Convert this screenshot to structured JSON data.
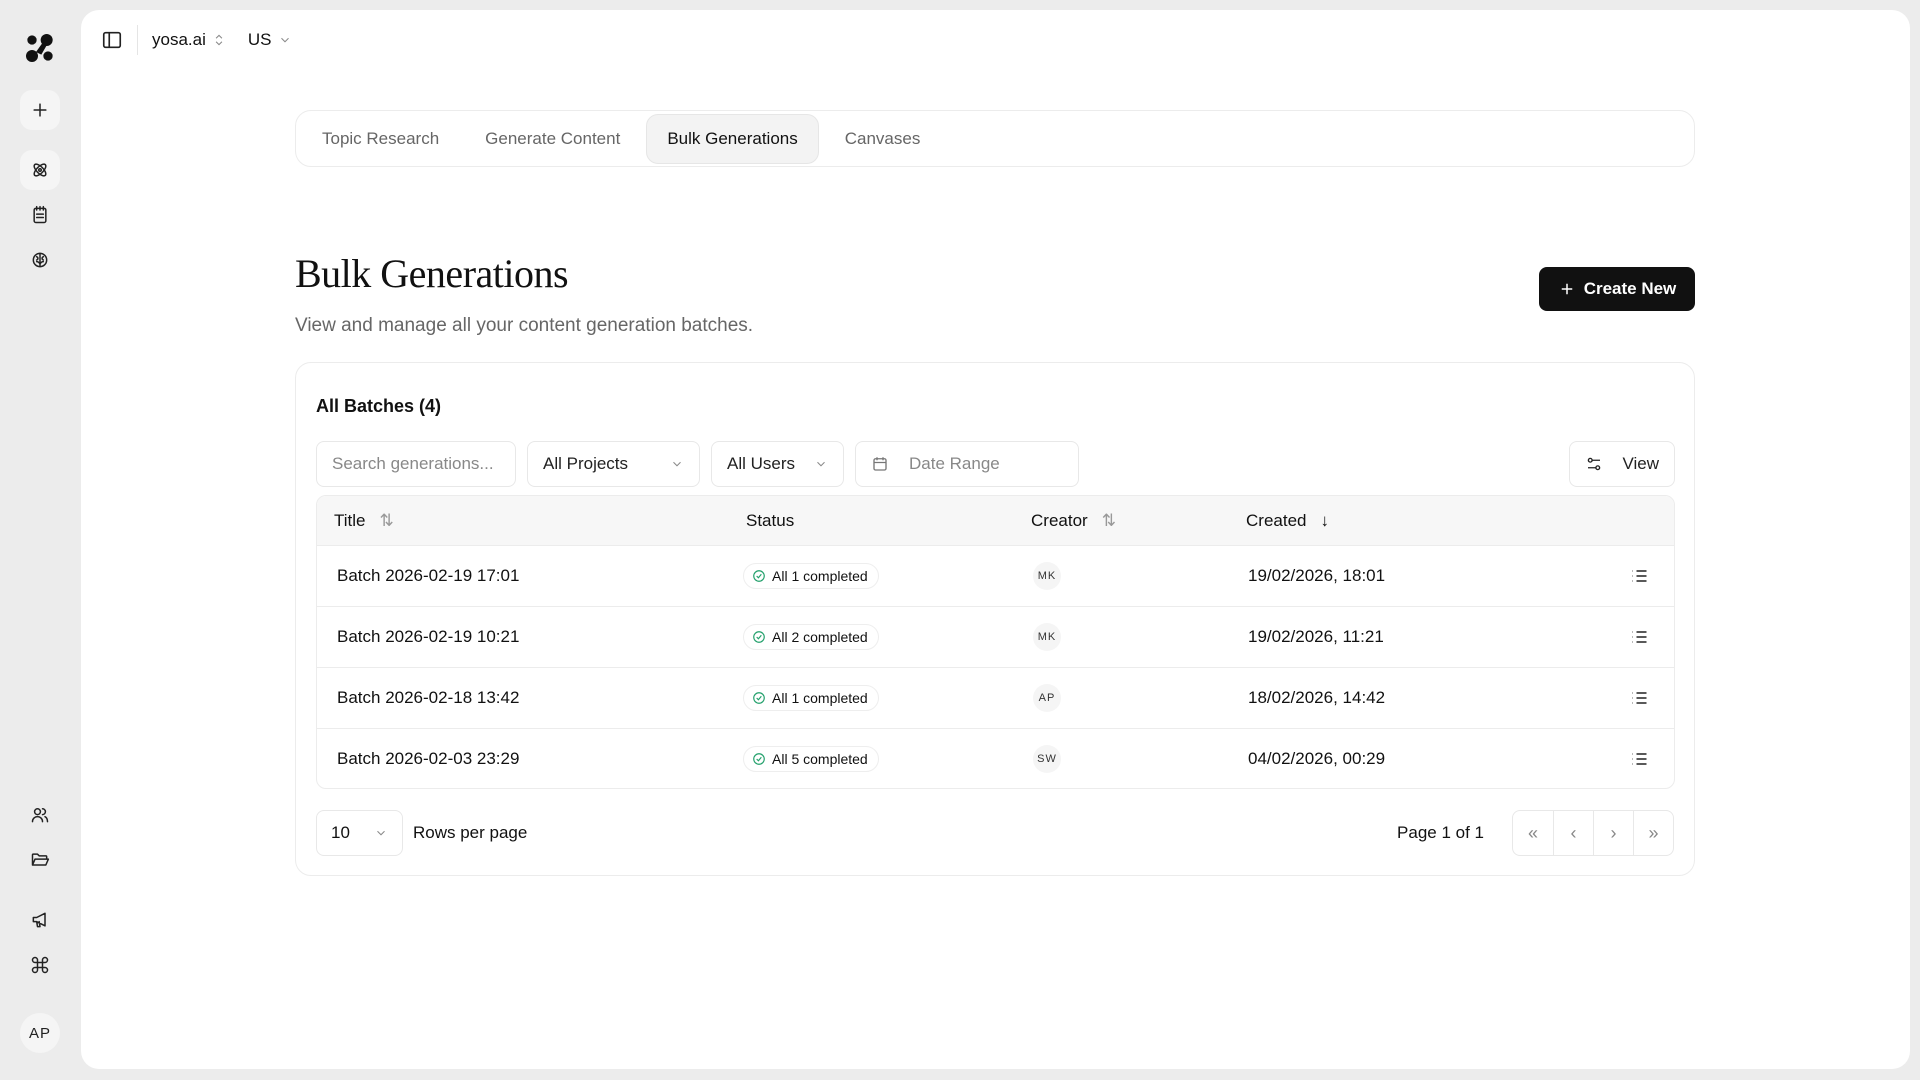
{
  "workspace": "yosa.ai",
  "region": "US",
  "tabs": [
    {
      "label": "Topic Research"
    },
    {
      "label": "Generate Content"
    },
    {
      "label": "Bulk Generations",
      "active": true
    },
    {
      "label": "Canvases"
    }
  ],
  "page": {
    "title": "Bulk Generations",
    "subtitle": "View and manage all your content generation batches.",
    "create_label": "Create New"
  },
  "card": {
    "title": "All Batches (4)"
  },
  "filters": {
    "search_placeholder": "Search generations...",
    "projects": "All Projects",
    "users": "All Users",
    "date_range": "Date Range",
    "view": "View"
  },
  "table": {
    "headers": {
      "title": "Title",
      "status": "Status",
      "creator": "Creator",
      "created": "Created"
    },
    "rows": [
      {
        "title": "Batch 2026-02-19 17:01",
        "status": "All 1 completed",
        "creator": "MK",
        "created": "19/02/2026, 18:01"
      },
      {
        "title": "Batch 2026-02-19 10:21",
        "status": "All 2 completed",
        "creator": "MK",
        "created": "19/02/2026, 11:21"
      },
      {
        "title": "Batch 2026-02-18 13:42",
        "status": "All 1 completed",
        "creator": "AP",
        "created": "18/02/2026, 14:42"
      },
      {
        "title": "Batch 2026-02-03 23:29",
        "status": "All 5 completed",
        "creator": "SW",
        "created": "04/02/2026, 00:29"
      }
    ]
  },
  "pagination": {
    "rows_per_page": "10",
    "rows_label": "Rows per page",
    "page_info": "Page 1 of 1"
  },
  "user": {
    "initials": "AP"
  },
  "colors": {
    "accent": "#111111",
    "success": "#22a06b"
  }
}
